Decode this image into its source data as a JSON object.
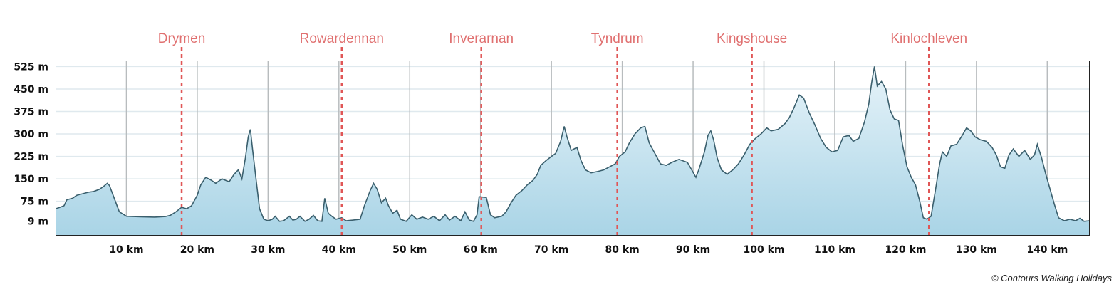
{
  "chart_data": {
    "type": "area",
    "title": "",
    "xlabel": "",
    "ylabel": "",
    "xlim": [
      0,
      146
    ],
    "ylim": [
      -40,
      545
    ],
    "y_ticks": [
      {
        "value": 9,
        "label": "9 m"
      },
      {
        "value": 75,
        "label": "75 m"
      },
      {
        "value": 150,
        "label": "150 m"
      },
      {
        "value": 225,
        "label": "225 m"
      },
      {
        "value": 300,
        "label": "300 m"
      },
      {
        "value": 375,
        "label": "375 m"
      },
      {
        "value": 450,
        "label": "450 m"
      },
      {
        "value": 525,
        "label": "525 m"
      }
    ],
    "x_ticks": [
      {
        "value": 10,
        "label": "10 km"
      },
      {
        "value": 20,
        "label": "20 km"
      },
      {
        "value": 30,
        "label": "30 km"
      },
      {
        "value": 40,
        "label": "40 km"
      },
      {
        "value": 50,
        "label": "50 km"
      },
      {
        "value": 60,
        "label": "60 km"
      },
      {
        "value": 70,
        "label": "70 km"
      },
      {
        "value": 80,
        "label": "80 km"
      },
      {
        "value": 90,
        "label": "90 km"
      },
      {
        "value": 100,
        "label": "100 km"
      },
      {
        "value": 110,
        "label": "110 km"
      },
      {
        "value": 120,
        "label": "120 km"
      },
      {
        "value": 130,
        "label": "130 km"
      },
      {
        "value": 140,
        "label": "140 km"
      }
    ],
    "grid": true,
    "towns": [
      {
        "name": "Drymen",
        "km": 17.8
      },
      {
        "name": "Rowardennan",
        "km": 40.4
      },
      {
        "name": "Inverarnan",
        "km": 60.1
      },
      {
        "name": "Tyndrum",
        "km": 79.3
      },
      {
        "name": "Kingshouse",
        "km": 98.3
      },
      {
        "name": "Kinlochleven",
        "km": 123.3
      }
    ],
    "series": [
      {
        "points": [
          [
            0,
            50
          ],
          [
            0.6,
            55
          ],
          [
            1.2,
            60
          ],
          [
            1.6,
            80
          ],
          [
            2.4,
            85
          ],
          [
            3.0,
            95
          ],
          [
            3.8,
            100
          ],
          [
            4.6,
            105
          ],
          [
            5.4,
            108
          ],
          [
            6.2,
            115
          ],
          [
            6.8,
            125
          ],
          [
            7.3,
            135
          ],
          [
            7.6,
            128
          ],
          [
            8.2,
            90
          ],
          [
            9.0,
            40
          ],
          [
            10.0,
            25
          ],
          [
            12.0,
            23
          ],
          [
            14.0,
            22
          ],
          [
            15.5,
            24
          ],
          [
            16.2,
            28
          ],
          [
            17.0,
            40
          ],
          [
            17.8,
            55
          ],
          [
            18.5,
            50
          ],
          [
            19.2,
            60
          ],
          [
            20.0,
            95
          ],
          [
            20.5,
            130
          ],
          [
            21.2,
            155
          ],
          [
            22.0,
            145
          ],
          [
            22.6,
            135
          ],
          [
            23.5,
            150
          ],
          [
            24.5,
            140
          ],
          [
            25.2,
            165
          ],
          [
            25.8,
            180
          ],
          [
            26.3,
            150
          ],
          [
            26.8,
            220
          ],
          [
            27.2,
            290
          ],
          [
            27.5,
            315
          ],
          [
            27.8,
            250
          ],
          [
            28.3,
            150
          ],
          [
            28.8,
            50
          ],
          [
            29.4,
            15
          ],
          [
            30.0,
            10
          ],
          [
            30.6,
            15
          ],
          [
            31.0,
            25
          ],
          [
            31.6,
            8
          ],
          [
            32.2,
            10
          ],
          [
            33.0,
            25
          ],
          [
            33.5,
            12
          ],
          [
            34.0,
            15
          ],
          [
            34.5,
            25
          ],
          [
            35.2,
            8
          ],
          [
            35.8,
            15
          ],
          [
            36.4,
            28
          ],
          [
            37.0,
            10
          ],
          [
            37.6,
            8
          ],
          [
            38.0,
            85
          ],
          [
            38.5,
            35
          ],
          [
            39.0,
            25
          ],
          [
            39.6,
            15
          ],
          [
            40.4,
            20
          ],
          [
            41.0,
            10
          ],
          [
            42.0,
            12
          ],
          [
            43.0,
            15
          ],
          [
            43.6,
            60
          ],
          [
            44.4,
            110
          ],
          [
            44.9,
            135
          ],
          [
            45.4,
            115
          ],
          [
            46.0,
            70
          ],
          [
            46.6,
            85
          ],
          [
            47.0,
            60
          ],
          [
            47.6,
            35
          ],
          [
            48.2,
            45
          ],
          [
            48.7,
            15
          ],
          [
            49.5,
            8
          ],
          [
            50.3,
            30
          ],
          [
            51.0,
            15
          ],
          [
            51.8,
            22
          ],
          [
            52.6,
            15
          ],
          [
            53.4,
            25
          ],
          [
            54.2,
            10
          ],
          [
            55.0,
            30
          ],
          [
            55.6,
            12
          ],
          [
            56.4,
            25
          ],
          [
            57.2,
            10
          ],
          [
            57.8,
            40
          ],
          [
            58.4,
            12
          ],
          [
            59.0,
            8
          ],
          [
            59.5,
            30
          ],
          [
            59.8,
            90
          ],
          [
            60.8,
            88
          ],
          [
            61.4,
            30
          ],
          [
            62.0,
            20
          ],
          [
            63.0,
            25
          ],
          [
            63.6,
            40
          ],
          [
            64.3,
            70
          ],
          [
            65.0,
            95
          ],
          [
            65.8,
            110
          ],
          [
            66.6,
            130
          ],
          [
            67.4,
            145
          ],
          [
            68.0,
            165
          ],
          [
            68.5,
            195
          ],
          [
            69.2,
            210
          ],
          [
            70.0,
            225
          ],
          [
            70.6,
            235
          ],
          [
            71.3,
            275
          ],
          [
            71.8,
            325
          ],
          [
            72.2,
            290
          ],
          [
            72.8,
            245
          ],
          [
            73.6,
            255
          ],
          [
            74.2,
            210
          ],
          [
            74.8,
            180
          ],
          [
            75.6,
            170
          ],
          [
            76.6,
            175
          ],
          [
            77.4,
            180
          ],
          [
            78.2,
            190
          ],
          [
            79.0,
            200
          ],
          [
            79.6,
            225
          ],
          [
            80.4,
            240
          ],
          [
            81.0,
            270
          ],
          [
            81.8,
            300
          ],
          [
            82.6,
            320
          ],
          [
            83.2,
            325
          ],
          [
            83.8,
            270
          ],
          [
            84.6,
            235
          ],
          [
            85.4,
            200
          ],
          [
            86.2,
            195
          ],
          [
            87.0,
            205
          ],
          [
            88.0,
            215
          ],
          [
            89.2,
            205
          ],
          [
            89.8,
            180
          ],
          [
            90.4,
            155
          ],
          [
            90.8,
            180
          ],
          [
            91.6,
            240
          ],
          [
            92.1,
            295
          ],
          [
            92.5,
            310
          ],
          [
            92.9,
            280
          ],
          [
            93.4,
            220
          ],
          [
            94.0,
            180
          ],
          [
            94.8,
            165
          ],
          [
            95.6,
            180
          ],
          [
            96.4,
            200
          ],
          [
            97.2,
            230
          ],
          [
            98.0,
            265
          ],
          [
            98.8,
            285
          ],
          [
            99.6,
            300
          ],
          [
            100.4,
            320
          ],
          [
            101.0,
            310
          ],
          [
            102.0,
            315
          ],
          [
            103.0,
            335
          ],
          [
            103.6,
            355
          ],
          [
            104.2,
            385
          ],
          [
            105.0,
            430
          ],
          [
            105.6,
            420
          ],
          [
            106.4,
            370
          ],
          [
            107.2,
            330
          ],
          [
            108.0,
            285
          ],
          [
            108.8,
            255
          ],
          [
            109.6,
            240
          ],
          [
            110.4,
            245
          ],
          [
            111.2,
            290
          ],
          [
            112.0,
            295
          ],
          [
            112.6,
            275
          ],
          [
            113.4,
            285
          ],
          [
            114.2,
            340
          ],
          [
            114.8,
            400
          ],
          [
            115.2,
            470
          ],
          [
            115.6,
            525
          ],
          [
            116.0,
            460
          ],
          [
            116.6,
            475
          ],
          [
            117.2,
            450
          ],
          [
            117.8,
            380
          ],
          [
            118.4,
            350
          ],
          [
            119.0,
            345
          ],
          [
            119.6,
            260
          ],
          [
            120.2,
            190
          ],
          [
            120.8,
            155
          ],
          [
            121.4,
            130
          ],
          [
            122.0,
            75
          ],
          [
            122.5,
            20
          ],
          [
            123.0,
            15
          ],
          [
            123.6,
            25
          ],
          [
            124.2,
            110
          ],
          [
            124.8,
            200
          ],
          [
            125.2,
            240
          ],
          [
            125.8,
            225
          ],
          [
            126.4,
            260
          ],
          [
            127.2,
            265
          ],
          [
            128.0,
            295
          ],
          [
            128.6,
            320
          ],
          [
            129.2,
            310
          ],
          [
            129.8,
            290
          ],
          [
            130.6,
            280
          ],
          [
            131.4,
            275
          ],
          [
            132.2,
            255
          ],
          [
            132.8,
            230
          ],
          [
            133.4,
            190
          ],
          [
            134.0,
            185
          ],
          [
            134.6,
            230
          ],
          [
            135.2,
            250
          ],
          [
            136.0,
            225
          ],
          [
            136.8,
            245
          ],
          [
            137.6,
            215
          ],
          [
            138.2,
            230
          ],
          [
            138.6,
            265
          ],
          [
            139.2,
            220
          ],
          [
            139.8,
            165
          ],
          [
            140.4,
            115
          ],
          [
            141.0,
            65
          ],
          [
            141.6,
            20
          ],
          [
            142.4,
            10
          ],
          [
            143.2,
            15
          ],
          [
            144.0,
            10
          ],
          [
            144.6,
            18
          ],
          [
            145.2,
            8
          ],
          [
            146.0,
            10
          ]
        ]
      }
    ],
    "colors": {
      "fill_top": "#e6f3f9",
      "fill_bottom": "#a9d4e6",
      "line": "#3a5f6d",
      "grid_horizontal": "#dfe9ee",
      "grid_vertical": "#b8bcbe",
      "town_marker": "#e05656",
      "town_label": "#e07070"
    }
  },
  "credit": "© Contours Walking Holidays"
}
